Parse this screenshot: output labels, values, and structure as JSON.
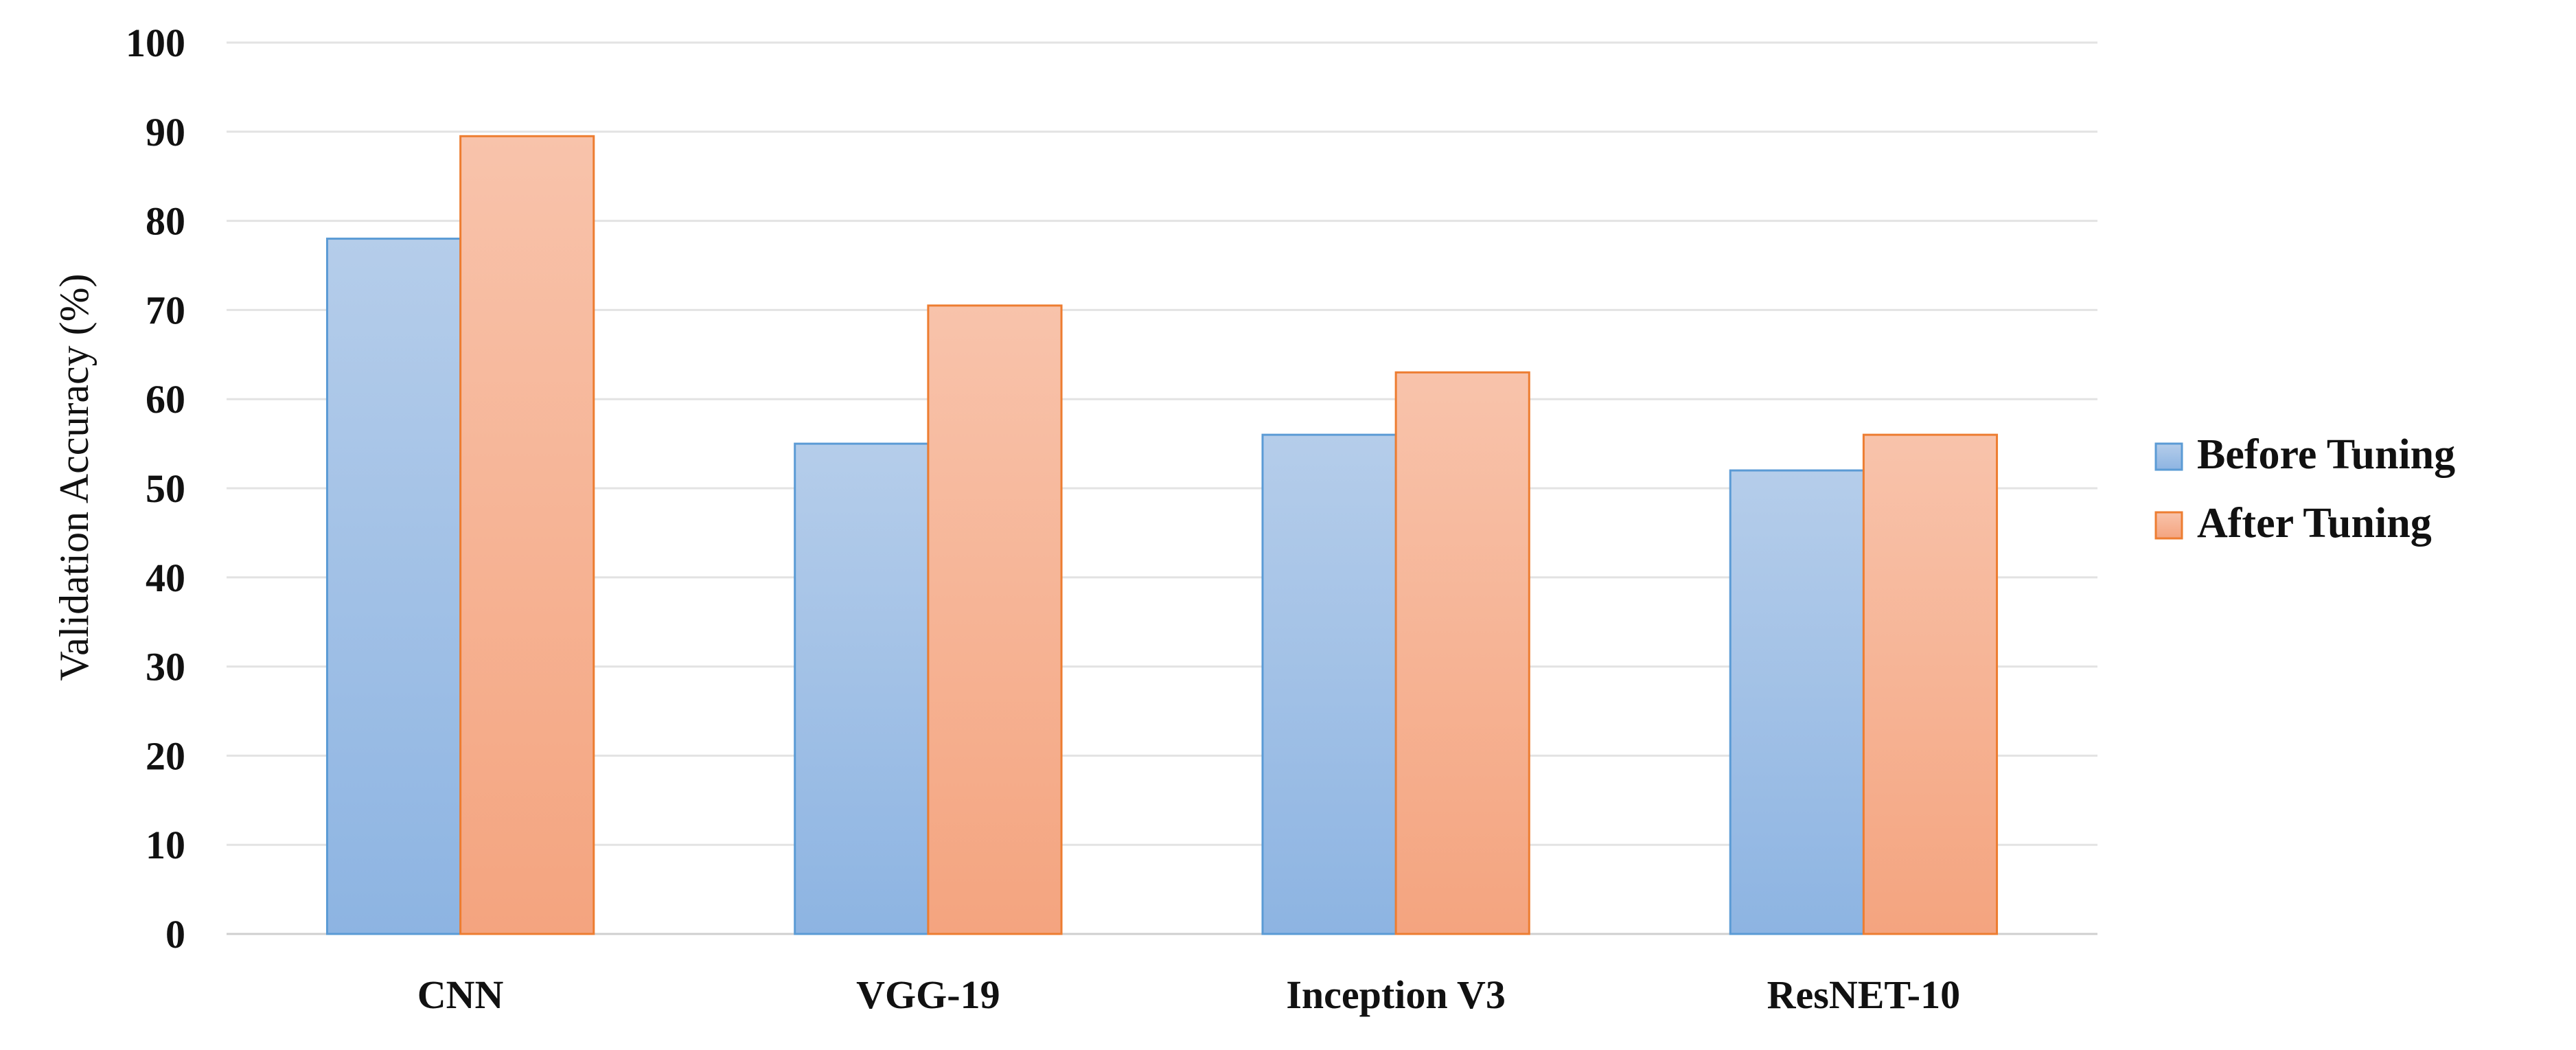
{
  "chart_data": {
    "type": "bar",
    "title": "",
    "xlabel": "",
    "ylabel": "Validation Accuracy (%)",
    "ylim": [
      0,
      100
    ],
    "ytick_step": 10,
    "grid": true,
    "legend_position": "right",
    "categories": [
      "CNN",
      "VGG-19",
      "Inception V3",
      "ResNET-10"
    ],
    "series": [
      {
        "name": "Before Tuning",
        "values": [
          78,
          55,
          56,
          52
        ],
        "color": "#9dbde6",
        "edge_color": "#5b9bd5"
      },
      {
        "name": "After Tuning",
        "values": [
          89.5,
          70.5,
          63,
          56
        ],
        "color": "#f6b596",
        "edge_color": "#ed7d31"
      }
    ]
  }
}
